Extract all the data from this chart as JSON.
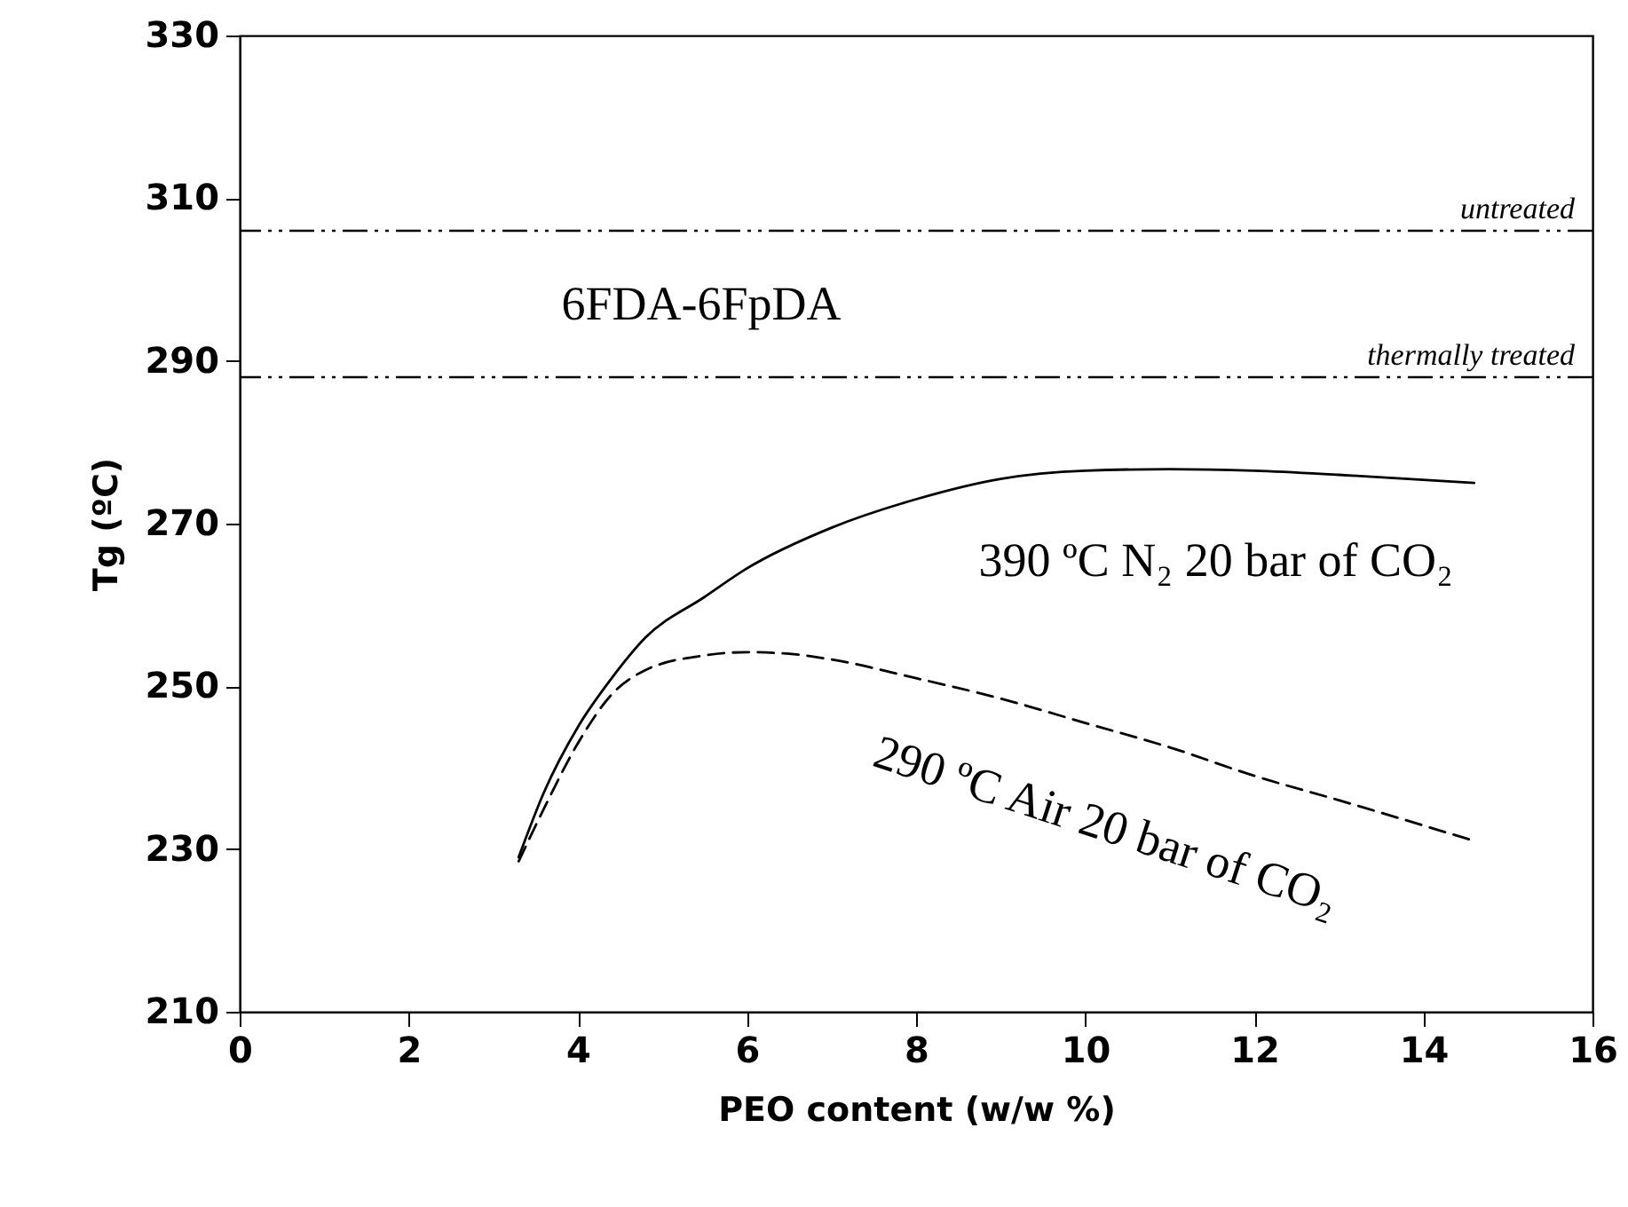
{
  "chart_data": {
    "type": "line",
    "xlabel": "PEO content (w/w %)",
    "ylabel": "Tg (ºC)",
    "xlim": [
      0,
      16
    ],
    "xticks": [
      0,
      2,
      4,
      6,
      8,
      10,
      12,
      14,
      16
    ],
    "ylim": [
      210,
      330
    ],
    "yticks": [
      210,
      230,
      250,
      270,
      290,
      310,
      330
    ],
    "grid": false,
    "marker": "none",
    "series": [
      {
        "name": "390 ºC N₂ 20 bar of CO₂",
        "color": "#000000",
        "line_style": "solid",
        "x": [
          3.3,
          3.6,
          4,
          4.4,
          4.8,
          5.5,
          6,
          7,
          8,
          9,
          10,
          11,
          12,
          13,
          14.6
        ],
        "values": [
          229,
          237,
          245,
          251,
          256,
          261,
          264.5,
          269.5,
          273,
          275.5,
          276.5,
          276.7,
          276.5,
          276,
          275
        ]
      },
      {
        "name": "290 ºC Air 20 bar of CO₂",
        "color": "#000000",
        "line_style": "dashed",
        "x": [
          3.3,
          3.6,
          4,
          4.4,
          4.8,
          5.5,
          6,
          6.5,
          7,
          8,
          9,
          10,
          11,
          12,
          13,
          14.6
        ],
        "values": [
          228.5,
          235,
          243,
          249,
          252,
          253.8,
          254.2,
          254,
          253.3,
          251,
          248.5,
          245.5,
          242.5,
          239,
          236,
          231
        ]
      }
    ],
    "ref_lines": [
      {
        "axis": "y",
        "value": 306,
        "label": "untreated",
        "color": "#000000",
        "line_style": "dashed"
      },
      {
        "axis": "y",
        "value": 288,
        "label": "thermally treated",
        "color": "#000000",
        "line_style": "dashed"
      }
    ],
    "annotations": [
      "6FDA-6FpDA"
    ]
  }
}
